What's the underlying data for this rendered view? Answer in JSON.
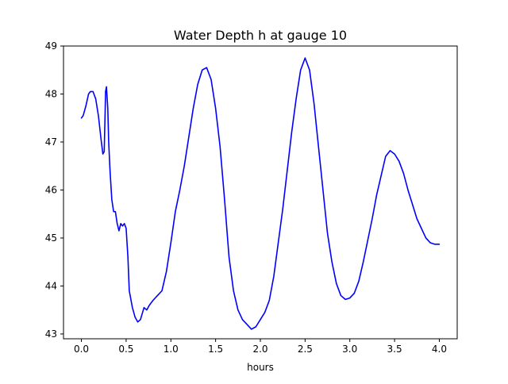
{
  "chart_data": {
    "type": "line",
    "title": "Water Depth h at gauge 10",
    "xlabel": "hours",
    "ylabel": "",
    "xlim": [
      -0.2,
      4.2
    ],
    "ylim": [
      42.9,
      49.0
    ],
    "xticks": [
      0.0,
      0.5,
      1.0,
      1.5,
      2.0,
      2.5,
      3.0,
      3.5,
      4.0
    ],
    "xtick_labels": [
      "0.0",
      "0.5",
      "1.0",
      "1.5",
      "2.0",
      "2.5",
      "3.0",
      "3.5",
      "4.0"
    ],
    "yticks": [
      43,
      44,
      45,
      46,
      47,
      48,
      49
    ],
    "ytick_labels": [
      "43",
      "44",
      "45",
      "46",
      "47",
      "48",
      "49"
    ],
    "grid": false,
    "series": [
      {
        "color": "#0000ff",
        "x": [
          0.0,
          0.02,
          0.05,
          0.08,
          0.1,
          0.13,
          0.16,
          0.19,
          0.22,
          0.24,
          0.255,
          0.265,
          0.27,
          0.28,
          0.295,
          0.305,
          0.32,
          0.34,
          0.36,
          0.38,
          0.4,
          0.42,
          0.44,
          0.46,
          0.48,
          0.5,
          0.52,
          0.535,
          0.55,
          0.57,
          0.6,
          0.63,
          0.66,
          0.7,
          0.73,
          0.76,
          0.8,
          0.85,
          0.9,
          0.95,
          1.0,
          1.05,
          1.1,
          1.15,
          1.2,
          1.25,
          1.3,
          1.35,
          1.4,
          1.45,
          1.5,
          1.55,
          1.6,
          1.65,
          1.7,
          1.75,
          1.8,
          1.85,
          1.9,
          1.95,
          2.0,
          2.05,
          2.1,
          2.15,
          2.2,
          2.25,
          2.3,
          2.35,
          2.4,
          2.45,
          2.5,
          2.55,
          2.6,
          2.65,
          2.7,
          2.75,
          2.8,
          2.85,
          2.9,
          2.95,
          3.0,
          3.05,
          3.1,
          3.15,
          3.2,
          3.25,
          3.3,
          3.35,
          3.4,
          3.45,
          3.5,
          3.55,
          3.6,
          3.65,
          3.7,
          3.75,
          3.8,
          3.85,
          3.9,
          3.95,
          4.0
        ],
        "y": [
          47.5,
          47.55,
          47.75,
          48.0,
          48.05,
          48.05,
          47.9,
          47.55,
          47.05,
          46.75,
          46.8,
          47.6,
          48.05,
          48.15,
          47.7,
          47.0,
          46.4,
          45.8,
          45.55,
          45.55,
          45.3,
          45.15,
          45.3,
          45.25,
          45.3,
          45.2,
          44.6,
          43.9,
          43.75,
          43.55,
          43.35,
          43.25,
          43.3,
          43.55,
          43.5,
          43.6,
          43.7,
          43.8,
          43.9,
          44.3,
          44.9,
          45.55,
          46.0,
          46.5,
          47.1,
          47.7,
          48.2,
          48.5,
          48.55,
          48.3,
          47.7,
          46.9,
          45.8,
          44.6,
          43.9,
          43.5,
          43.3,
          43.2,
          43.1,
          43.15,
          43.3,
          43.45,
          43.7,
          44.2,
          44.9,
          45.6,
          46.4,
          47.2,
          47.9,
          48.5,
          48.75,
          48.5,
          47.8,
          46.9,
          46.0,
          45.1,
          44.5,
          44.05,
          43.8,
          43.72,
          43.75,
          43.85,
          44.1,
          44.5,
          44.95,
          45.4,
          45.9,
          46.3,
          46.7,
          46.82,
          46.75,
          46.6,
          46.35,
          46.0,
          45.7,
          45.4,
          45.2,
          45.0,
          44.9,
          44.87,
          44.87
        ]
      }
    ]
  }
}
